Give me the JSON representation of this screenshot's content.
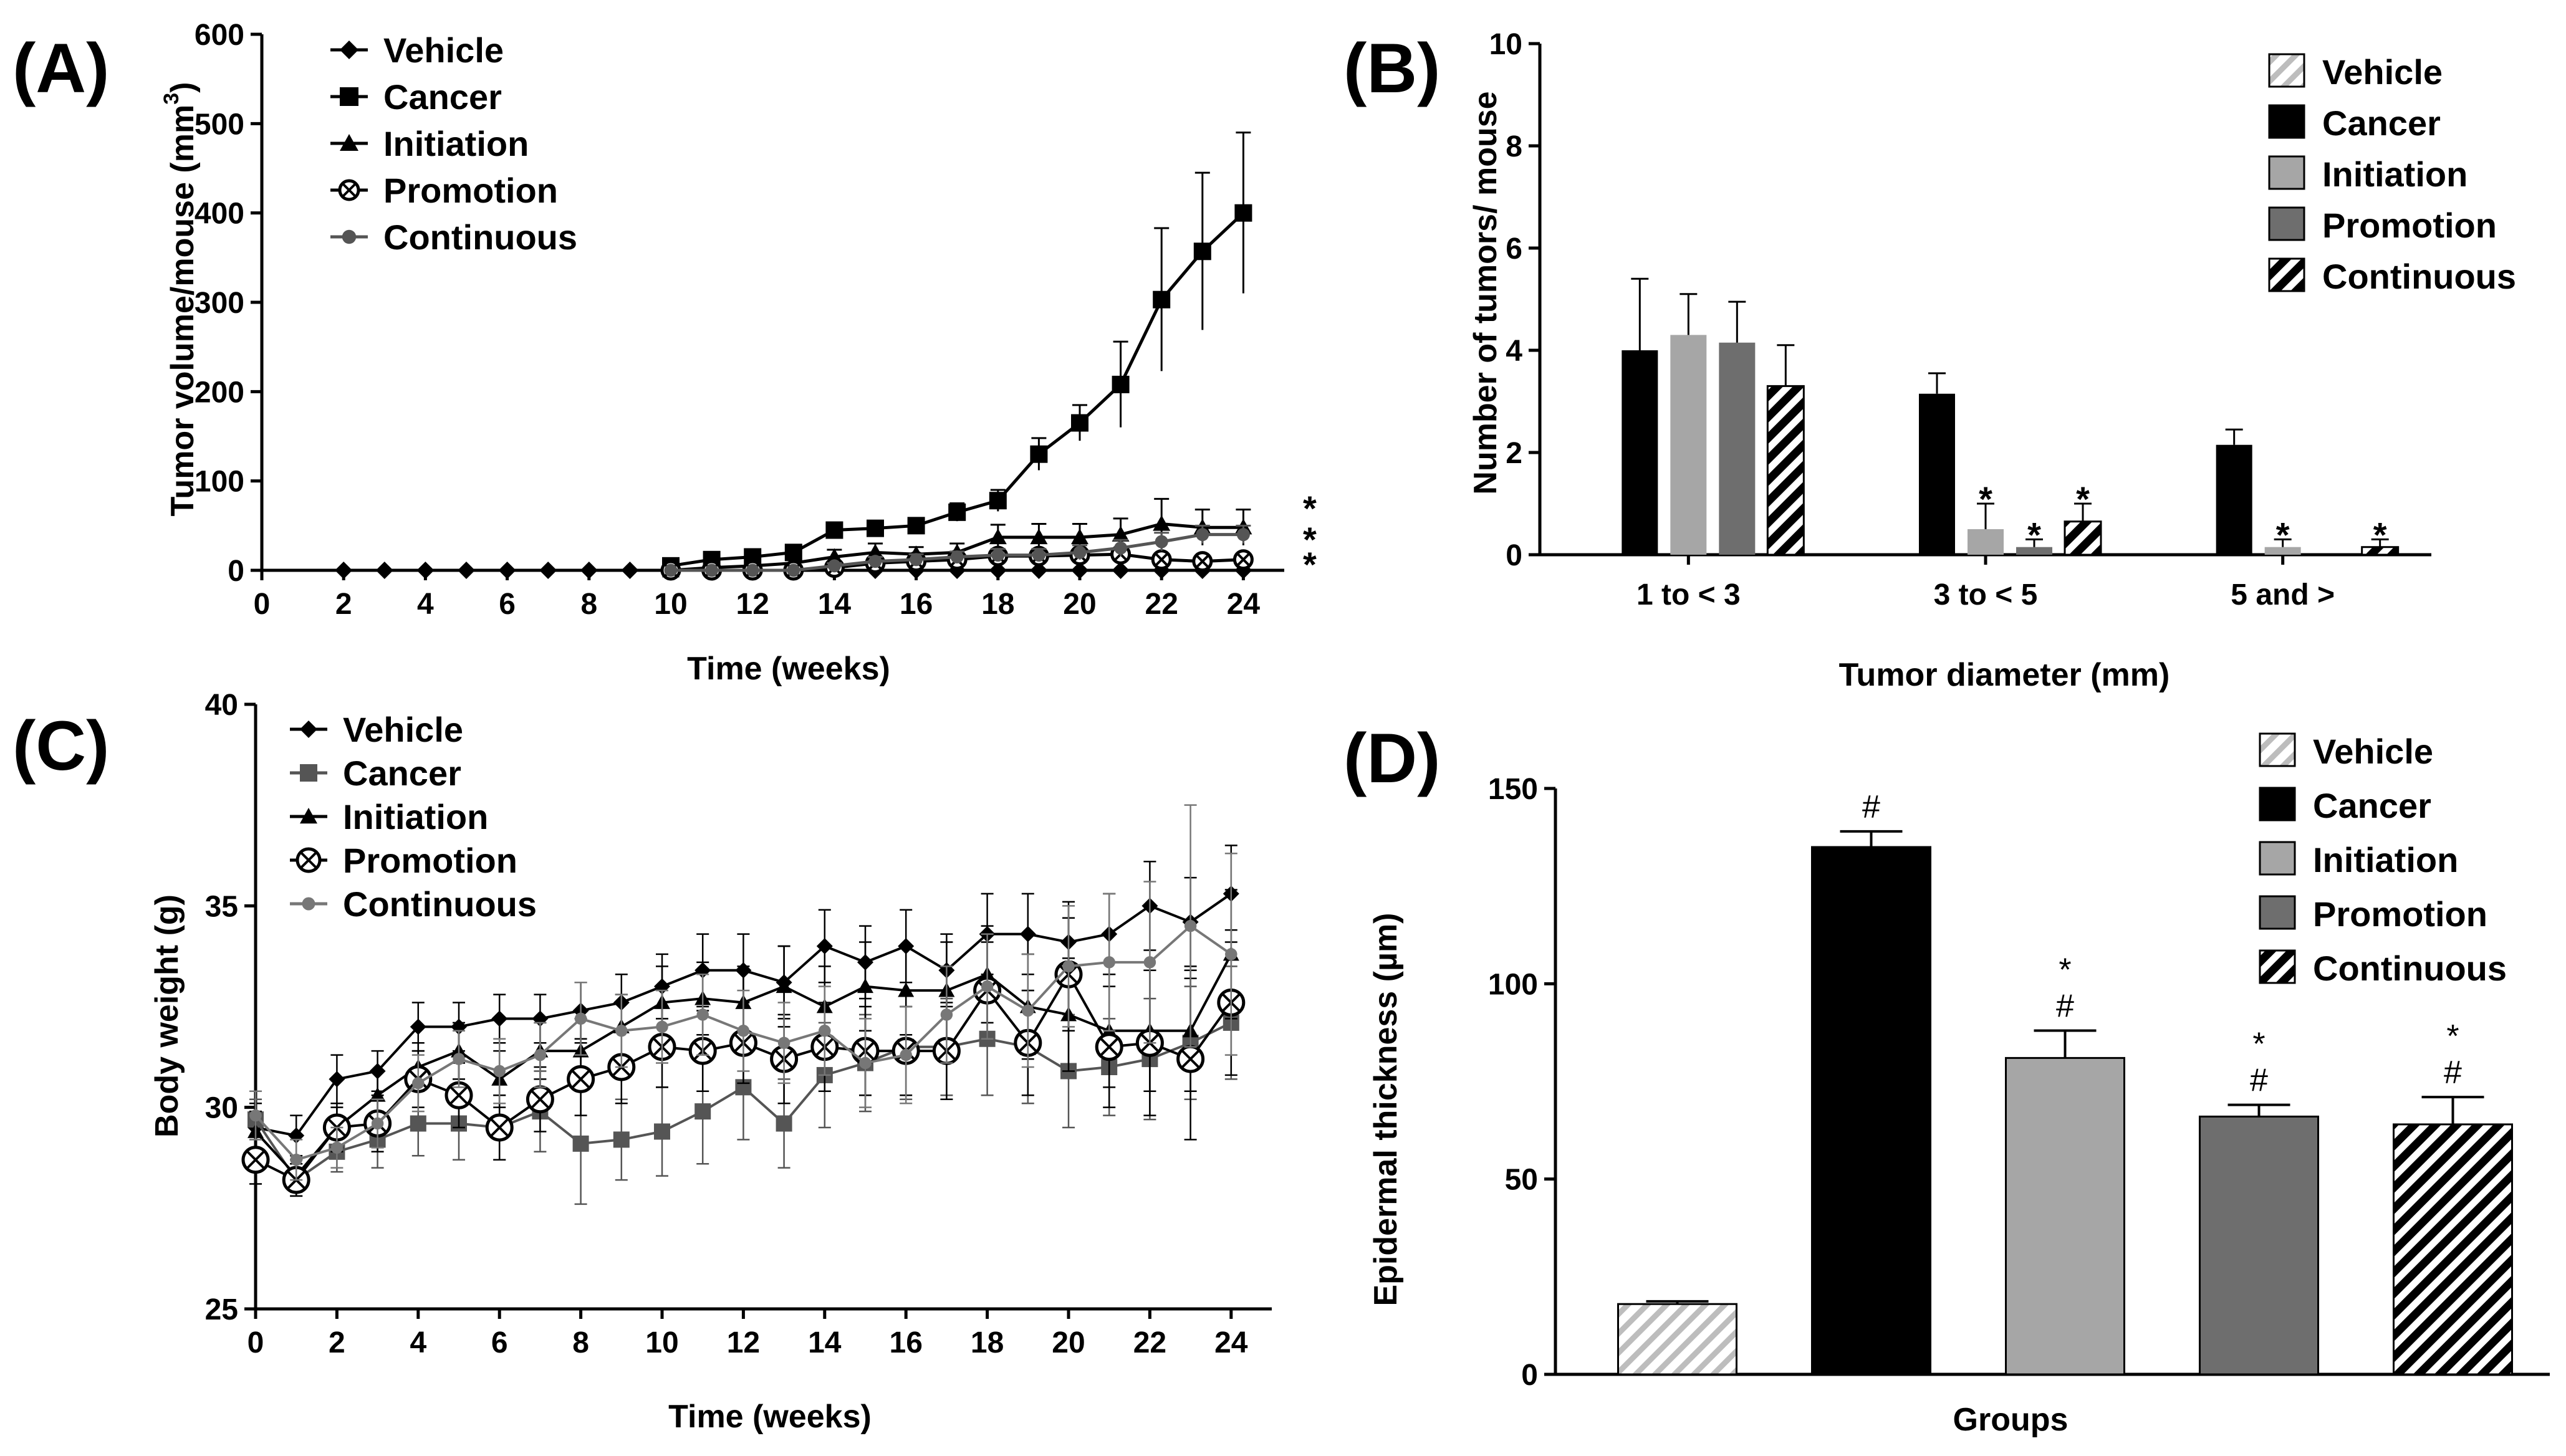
{
  "panels": [
    {
      "id": "A",
      "label": "(A)"
    },
    {
      "id": "B",
      "label": "(B)"
    },
    {
      "id": "C",
      "label": "(C)"
    },
    {
      "id": "D",
      "label": "(D)"
    }
  ],
  "chart_data": [
    {
      "id": "A",
      "type": "line",
      "xlabel": "Time (weeks)",
      "ylabel": "Tumor volume/mouse (mm",
      "ylabel_sup": "3",
      "ylabel_close": ")",
      "xlim": [
        0,
        25
      ],
      "ylim": [
        0,
        600
      ],
      "xticks": [
        0,
        2,
        4,
        6,
        8,
        10,
        12,
        14,
        16,
        18,
        20,
        22,
        24
      ],
      "yticks": [
        0,
        100,
        200,
        300,
        400,
        500,
        600
      ],
      "significance": [
        "*",
        "*",
        "*"
      ],
      "series": [
        {
          "name": "Vehicle",
          "marker": "diamond",
          "color": "#000000",
          "x": [
            2,
            3,
            4,
            5,
            6,
            7,
            8,
            9,
            10,
            11,
            12,
            13,
            14,
            15,
            16,
            17,
            18,
            19,
            20,
            21,
            22,
            23,
            24
          ],
          "y": [
            0,
            0,
            0,
            0,
            0,
            0,
            0,
            0,
            0,
            0,
            0,
            0,
            0,
            0,
            0,
            0,
            0,
            0,
            0,
            0,
            0,
            0,
            0
          ],
          "err": [
            0,
            0,
            0,
            0,
            0,
            0,
            0,
            0,
            0,
            0,
            0,
            0,
            0,
            0,
            0,
            0,
            0,
            0,
            0,
            0,
            0,
            0,
            0
          ]
        },
        {
          "name": "Cancer",
          "marker": "square",
          "color": "#000000",
          "x": [
            10,
            11,
            12,
            13,
            14,
            15,
            16,
            17,
            18,
            19,
            20,
            21,
            22,
            23,
            24
          ],
          "y": [
            5,
            12,
            15,
            20,
            45,
            47,
            50,
            65,
            78,
            130,
            165,
            208,
            303,
            357,
            400
          ],
          "err": [
            3,
            4,
            4,
            5,
            8,
            8,
            8,
            10,
            12,
            18,
            20,
            48,
            80,
            88,
            90
          ]
        },
        {
          "name": "Initiation",
          "marker": "triangle",
          "color": "#000000",
          "x": [
            10,
            11,
            12,
            13,
            14,
            15,
            16,
            17,
            18,
            19,
            20,
            21,
            22,
            23,
            24
          ],
          "y": [
            0,
            3,
            5,
            8,
            15,
            20,
            18,
            20,
            37,
            37,
            37,
            40,
            52,
            48,
            48
          ],
          "err": [
            0,
            2,
            3,
            4,
            8,
            10,
            8,
            10,
            14,
            15,
            15,
            18,
            28,
            20,
            20
          ]
        },
        {
          "name": "Promotion",
          "marker": "circle-x",
          "color": "#000000",
          "x": [
            10,
            11,
            12,
            13,
            14,
            15,
            16,
            17,
            18,
            19,
            20,
            21,
            22,
            23,
            24
          ],
          "y": [
            0,
            0,
            0,
            0,
            3,
            8,
            10,
            12,
            16,
            16,
            17,
            18,
            12,
            10,
            12
          ],
          "err": [
            0,
            0,
            0,
            0,
            2,
            4,
            5,
            5,
            6,
            6,
            6,
            7,
            6,
            5,
            6
          ]
        },
        {
          "name": "Continuous",
          "marker": "dot",
          "color": "#555555",
          "x": [
            10,
            11,
            12,
            13,
            14,
            15,
            16,
            17,
            18,
            19,
            20,
            21,
            22,
            23,
            24
          ],
          "y": [
            0,
            0,
            0,
            0,
            5,
            10,
            12,
            15,
            17,
            17,
            20,
            25,
            32,
            40,
            40
          ],
          "err": [
            0,
            0,
            0,
            0,
            3,
            5,
            6,
            6,
            7,
            7,
            8,
            9,
            10,
            10,
            10
          ]
        }
      ]
    },
    {
      "id": "B",
      "type": "bar",
      "xlabel": "Tumor diameter (mm)",
      "ylabel": "Number of tumors/ mouse",
      "ylim": [
        0,
        10
      ],
      "yticks": [
        0,
        2,
        4,
        6,
        8,
        10
      ],
      "categories": [
        "1 to < 3",
        "3 to < 5",
        "5 and >"
      ],
      "series": [
        {
          "name": "Vehicle",
          "fill": "hatch-light",
          "values": [
            0,
            0,
            0
          ],
          "err": [
            0,
            0,
            0
          ],
          "sig": [
            "",
            "",
            ""
          ]
        },
        {
          "name": "Cancer",
          "fill": "#000000",
          "values": [
            4.0,
            3.15,
            2.15
          ],
          "err": [
            1.4,
            0.4,
            0.3
          ],
          "sig": [
            "",
            "",
            ""
          ]
        },
        {
          "name": "Initiation",
          "fill": "#a6a6a6",
          "values": [
            4.3,
            0.5,
            0.15
          ],
          "err": [
            0.8,
            0.5,
            0.15
          ],
          "sig": [
            "",
            "*",
            "*"
          ]
        },
        {
          "name": "Promotion",
          "fill": "#6e6e6e",
          "values": [
            4.15,
            0.15,
            0
          ],
          "err": [
            0.8,
            0.15,
            0
          ],
          "sig": [
            "",
            "*",
            ""
          ]
        },
        {
          "name": "Continuous",
          "fill": "hatch-dark",
          "values": [
            3.3,
            0.65,
            0.15
          ],
          "err": [
            0.8,
            0.35,
            0.15
          ],
          "sig": [
            "",
            "*",
            "*"
          ]
        }
      ]
    },
    {
      "id": "C",
      "type": "line",
      "xlabel": "Time (weeks)",
      "ylabel": "Body weight (g)",
      "xlim": [
        0,
        25
      ],
      "ylim": [
        25,
        40
      ],
      "xticks": [
        0,
        2,
        4,
        6,
        8,
        10,
        12,
        14,
        16,
        18,
        20,
        22,
        24
      ],
      "yticks": [
        25,
        30,
        35,
        40
      ],
      "series": [
        {
          "name": "Vehicle",
          "marker": "diamond",
          "color": "#000000",
          "x": [
            0,
            1,
            2,
            3,
            4,
            5,
            6,
            7,
            8,
            9,
            10,
            11,
            12,
            13,
            14,
            15,
            16,
            17,
            18,
            19,
            20,
            21,
            22,
            23,
            24
          ],
          "y": [
            29.5,
            29.3,
            30.7,
            30.9,
            32.0,
            32.0,
            32.2,
            32.2,
            32.4,
            32.6,
            33.0,
            33.4,
            33.4,
            33.1,
            34.0,
            33.6,
            34.0,
            33.4,
            34.3,
            34.3,
            34.1,
            34.3,
            35.0,
            34.6,
            35.3
          ],
          "err": [
            0.6,
            0.5,
            0.6,
            0.5,
            0.6,
            0.6,
            0.6,
            0.6,
            0.7,
            0.7,
            0.8,
            0.9,
            0.9,
            0.9,
            0.9,
            0.9,
            0.9,
            0.9,
            1.0,
            1.0,
            1.0,
            1.0,
            1.1,
            1.1,
            1.2
          ]
        },
        {
          "name": "Cancer",
          "marker": "square",
          "color": "#555555",
          "x": [
            0,
            1,
            2,
            3,
            4,
            5,
            6,
            7,
            8,
            9,
            10,
            11,
            12,
            13,
            14,
            15,
            16,
            17,
            18,
            19,
            20,
            21,
            22,
            23,
            24
          ],
          "y": [
            29.7,
            28.2,
            28.9,
            29.2,
            29.6,
            29.6,
            29.5,
            29.9,
            29.1,
            29.2,
            29.4,
            29.9,
            30.5,
            29.6,
            30.8,
            31.1,
            31.5,
            31.5,
            31.7,
            31.5,
            30.9,
            31.0,
            31.2,
            31.6,
            32.1
          ],
          "err": [
            0.5,
            0.4,
            0.5,
            0.7,
            0.8,
            0.9,
            0.8,
            1.0,
            1.5,
            1.0,
            1.1,
            1.3,
            1.3,
            1.1,
            1.3,
            1.2,
            1.3,
            1.2,
            1.4,
            1.4,
            1.4,
            1.2,
            1.5,
            1.4,
            1.4
          ]
        },
        {
          "name": "Initiation",
          "marker": "triangle",
          "color": "#000000",
          "x": [
            0,
            1,
            2,
            3,
            4,
            5,
            6,
            7,
            8,
            9,
            10,
            11,
            12,
            13,
            14,
            15,
            16,
            17,
            18,
            19,
            20,
            21,
            22,
            23,
            24
          ],
          "y": [
            29.4,
            28.3,
            29.5,
            30.3,
            31.0,
            31.4,
            30.7,
            31.4,
            31.4,
            32.0,
            32.6,
            32.7,
            32.6,
            33.0,
            32.5,
            33.0,
            32.9,
            32.9,
            33.3,
            32.5,
            32.3,
            31.9,
            31.9,
            31.9,
            33.8
          ],
          "err": [
            0.5,
            0.4,
            0.5,
            0.6,
            0.6,
            0.7,
            0.7,
            0.7,
            0.8,
            0.8,
            0.9,
            0.9,
            0.9,
            1.0,
            1.0,
            1.1,
            1.1,
            1.2,
            1.2,
            1.3,
            1.4,
            1.4,
            1.5,
            1.5,
            1.6
          ]
        },
        {
          "name": "Promotion",
          "marker": "circle-x",
          "color": "#000000",
          "x": [
            0,
            1,
            2,
            3,
            4,
            5,
            6,
            7,
            8,
            9,
            10,
            11,
            12,
            13,
            14,
            15,
            16,
            17,
            18,
            19,
            20,
            21,
            22,
            23,
            24
          ],
          "y": [
            28.7,
            28.2,
            29.5,
            29.6,
            30.7,
            30.3,
            29.5,
            30.2,
            30.7,
            31.0,
            31.5,
            31.4,
            31.6,
            31.2,
            31.5,
            31.4,
            31.4,
            31.4,
            32.9,
            31.6,
            33.3,
            31.5,
            31.6,
            31.2,
            32.6
          ],
          "err": [
            0.6,
            0.4,
            0.6,
            0.7,
            0.7,
            0.8,
            0.8,
            0.8,
            0.9,
            0.9,
            1.0,
            1.0,
            1.0,
            1.1,
            1.1,
            1.1,
            1.1,
            1.2,
            1.2,
            1.3,
            1.4,
            1.5,
            1.8,
            2.0,
            1.8
          ]
        },
        {
          "name": "Continuous",
          "marker": "dot",
          "color": "#777777",
          "x": [
            0,
            1,
            2,
            3,
            4,
            5,
            6,
            7,
            8,
            9,
            10,
            11,
            12,
            13,
            14,
            15,
            16,
            17,
            18,
            19,
            20,
            21,
            22,
            23,
            24
          ],
          "y": [
            29.8,
            28.7,
            29.0,
            29.6,
            30.6,
            31.2,
            30.9,
            31.3,
            32.2,
            31.9,
            32.0,
            32.3,
            31.9,
            31.6,
            31.9,
            31.1,
            31.3,
            32.3,
            33.0,
            32.4,
            33.5,
            33.6,
            33.6,
            34.5,
            33.8
          ],
          "err": [
            0.6,
            0.5,
            0.5,
            0.6,
            0.7,
            0.7,
            0.8,
            0.8,
            0.9,
            0.9,
            0.9,
            1.0,
            1.0,
            1.0,
            1.1,
            1.1,
            1.2,
            1.2,
            1.3,
            1.4,
            1.5,
            1.7,
            2.0,
            3.0,
            2.5
          ]
        }
      ]
    },
    {
      "id": "D",
      "type": "bar",
      "xlabel": "Groups",
      "ylabel": "Epidermal thickness (µm)",
      "ylim": [
        0,
        150
      ],
      "yticks": [
        0,
        50,
        100,
        150
      ],
      "categories": [
        "Vehicle",
        "Cancer",
        "Initiation",
        "Promotion",
        "Continuous"
      ],
      "values": [
        18,
        135,
        81,
        66,
        64
      ],
      "err": [
        0.7,
        4,
        7,
        3,
        7
      ],
      "fills": [
        "hatch-light",
        "#000000",
        "#a6a6a6",
        "#6e6e6e",
        "hatch-dark"
      ],
      "sig": [
        [],
        [
          "#"
        ],
        [
          "*",
          "#"
        ],
        [
          "*",
          "#"
        ],
        [
          "*",
          "#"
        ]
      ]
    }
  ]
}
